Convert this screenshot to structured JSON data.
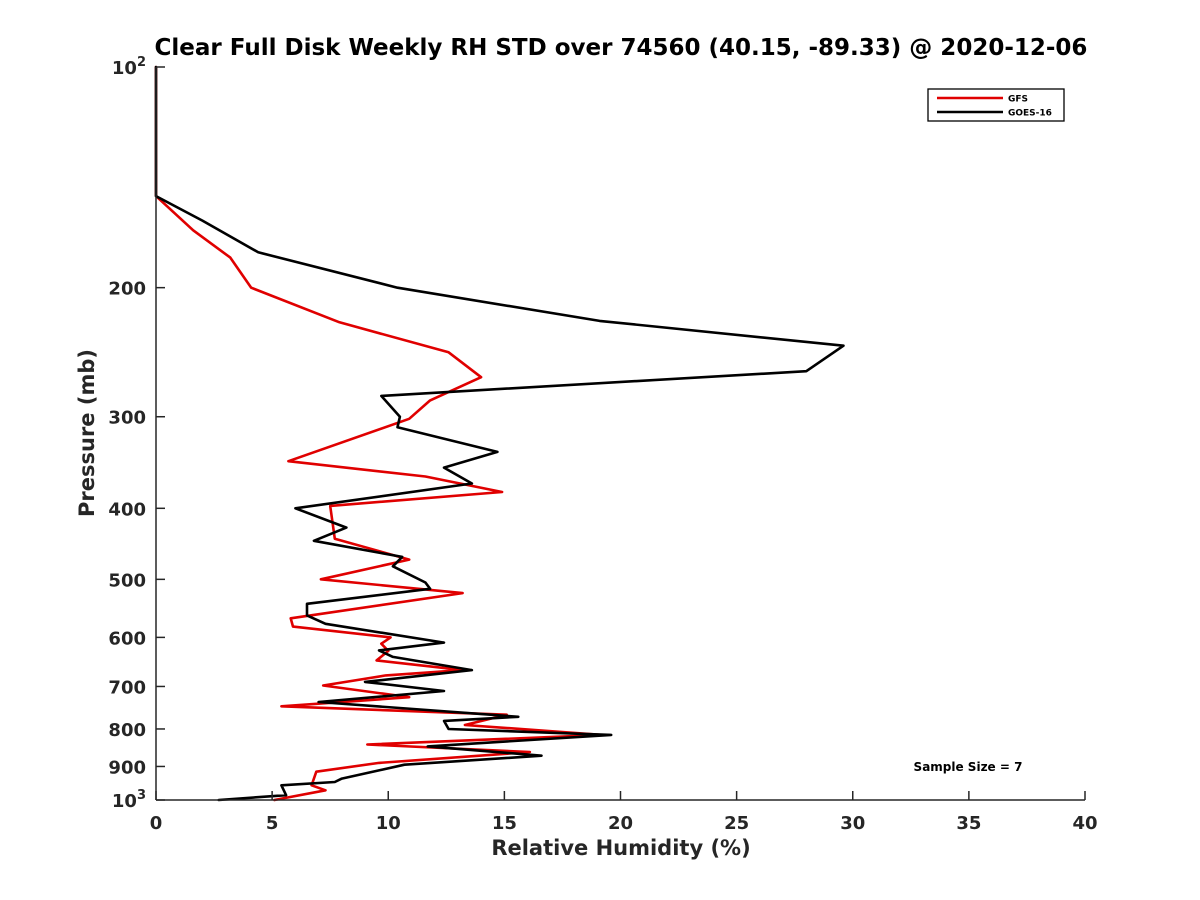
{
  "chart_data": {
    "type": "line",
    "title": "Clear Full Disk Weekly RH STD over 74560 (40.15, -89.33) @ 2020-12-06",
    "xlabel": "Relative Humidity (%)",
    "ylabel": "Pressure (mb)",
    "xlim": [
      0,
      40
    ],
    "ylim": [
      100,
      1000
    ],
    "yscale": "log",
    "y_reversed": true,
    "x_ticks": [
      0,
      5,
      10,
      15,
      20,
      25,
      30,
      35,
      40
    ],
    "y_ticks": [
      {
        "value": 100,
        "label": "10",
        "sup": "2"
      },
      {
        "value": 200,
        "label": "200",
        "sup": ""
      },
      {
        "value": 300,
        "label": "300",
        "sup": ""
      },
      {
        "value": 400,
        "label": "400",
        "sup": ""
      },
      {
        "value": 500,
        "label": "500",
        "sup": ""
      },
      {
        "value": 600,
        "label": "600",
        "sup": ""
      },
      {
        "value": 700,
        "label": "700",
        "sup": ""
      },
      {
        "value": 800,
        "label": "800",
        "sup": ""
      },
      {
        "value": 900,
        "label": "900",
        "sup": ""
      },
      {
        "value": 1000,
        "label": "10",
        "sup": "3"
      }
    ],
    "grid": false,
    "legend_position": "top-right",
    "annotation": "Sample Size = 7",
    "series": [
      {
        "name": "GFS",
        "color": "#e00000",
        "points": [
          [
            0,
            100
          ],
          [
            0,
            150
          ],
          [
            1.6,
            167
          ],
          [
            3.2,
            182
          ],
          [
            4.1,
            200
          ],
          [
            7.9,
            223
          ],
          [
            12.6,
            245
          ],
          [
            14.0,
            265
          ],
          [
            11.8,
            285
          ],
          [
            10.9,
            302
          ],
          [
            5.7,
            345
          ],
          [
            11.6,
            362
          ],
          [
            14.9,
            380
          ],
          [
            7.5,
            397
          ],
          [
            7.7,
            440
          ],
          [
            10.9,
            470
          ],
          [
            7.1,
            500
          ],
          [
            13.2,
            522
          ],
          [
            5.8,
            565
          ],
          [
            5.9,
            580
          ],
          [
            10.1,
            600
          ],
          [
            9.7,
            612
          ],
          [
            10.0,
            626
          ],
          [
            9.5,
            645
          ],
          [
            13.2,
            665
          ],
          [
            9.9,
            676
          ],
          [
            7.2,
            698
          ],
          [
            10.9,
            724
          ],
          [
            5.4,
            745
          ],
          [
            15.1,
            765
          ],
          [
            13.3,
            790
          ],
          [
            19.2,
            815
          ],
          [
            9.1,
            840
          ],
          [
            16.1,
            860
          ],
          [
            9.6,
            890
          ],
          [
            6.9,
            915
          ],
          [
            6.7,
            955
          ],
          [
            7.3,
            970
          ],
          [
            5.1,
            1000
          ]
        ]
      },
      {
        "name": "GOES-16",
        "color": "#000000",
        "points": [
          [
            0,
            100
          ],
          [
            0,
            150
          ],
          [
            2.0,
            162
          ],
          [
            4.4,
            179
          ],
          [
            10.4,
            200
          ],
          [
            19.1,
            222
          ],
          [
            29.6,
            240
          ],
          [
            28.0,
            260
          ],
          [
            9.7,
            281
          ],
          [
            10.5,
            300
          ],
          [
            10.4,
            310
          ],
          [
            14.7,
            335
          ],
          [
            12.4,
            352
          ],
          [
            13.6,
            370
          ],
          [
            6.0,
            400
          ],
          [
            8.2,
            425
          ],
          [
            6.8,
            443
          ],
          [
            10.6,
            466
          ],
          [
            10.2,
            480
          ],
          [
            11.6,
            505
          ],
          [
            11.8,
            515
          ],
          [
            6.5,
            540
          ],
          [
            6.5,
            560
          ],
          [
            7.3,
            575
          ],
          [
            12.4,
            610
          ],
          [
            9.6,
            625
          ],
          [
            10.2,
            638
          ],
          [
            13.6,
            665
          ],
          [
            9.0,
            690
          ],
          [
            12.4,
            710
          ],
          [
            7.0,
            735
          ],
          [
            15.6,
            770
          ],
          [
            12.4,
            780
          ],
          [
            12.6,
            800
          ],
          [
            19.6,
            815
          ],
          [
            11.7,
            845
          ],
          [
            16.6,
            870
          ],
          [
            10.7,
            895
          ],
          [
            8.0,
            935
          ],
          [
            7.7,
            945
          ],
          [
            5.4,
            955
          ],
          [
            5.6,
            985
          ],
          [
            2.7,
            1000
          ]
        ]
      }
    ]
  }
}
